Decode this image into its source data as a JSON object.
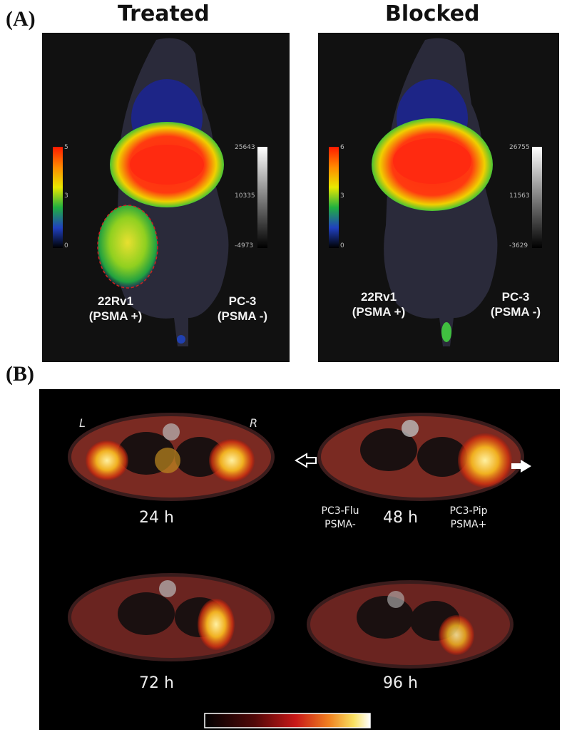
{
  "panel_a": {
    "label": "(A)",
    "treated": {
      "title": "Treated",
      "color_scale": {
        "max": "5",
        "mid": "3",
        "min": "0"
      },
      "gray_scale": {
        "max": "25643",
        "mid": "10335",
        "min": "-4973"
      },
      "left_tumor": {
        "name": "22Rv1",
        "status": "(PSMA +)"
      },
      "right_tumor": {
        "name": "PC-3",
        "status": "(PSMA -)"
      }
    },
    "blocked": {
      "title": "Blocked",
      "color_scale": {
        "max": "6",
        "mid": "3",
        "min": "0"
      },
      "gray_scale": {
        "max": "26755",
        "mid": "11563",
        "min": "-3629"
      },
      "left_tumor": {
        "name": "22Rv1",
        "status": "(PSMA +)"
      },
      "right_tumor": {
        "name": "PC-3",
        "status": "(PSMA -)"
      }
    }
  },
  "panel_b": {
    "label": "(B)",
    "orientation": {
      "left": "L",
      "right": "R"
    },
    "times": [
      "24 h",
      "48 h",
      "72 h",
      "96 h"
    ],
    "left_tumor": {
      "name": "PC3-Flu",
      "status": "PSMA-"
    },
    "right_tumor": {
      "name": "PC3-Pip",
      "status": "PSMA+"
    }
  }
}
